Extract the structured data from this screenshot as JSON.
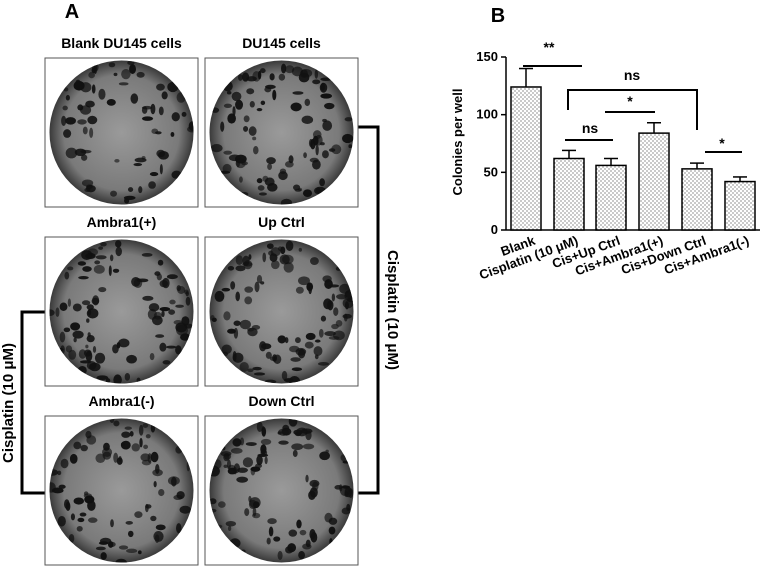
{
  "panel_a": {
    "label": "A",
    "wells": [
      "Blank DU145 cells",
      "DU145 cells",
      "Ambra1(+)",
      "Up Ctrl",
      "Ambra1(-)",
      "Down Ctrl"
    ],
    "bracket_left": "Cisplatin (10 μM)",
    "bracket_right": "Cisplatin (10 μM)"
  },
  "chart_data": {
    "type": "bar",
    "panel_label": "B",
    "y_label": "Colonies per well",
    "categories": [
      "Blank",
      "Cisplatin (10 μM)",
      "Cis+Up Ctrl",
      "Cis+Ambra1(+)",
      "Cis+Down Ctrl",
      "Cis+Ambra1(-)"
    ],
    "values": [
      124,
      62,
      56,
      84,
      53,
      42
    ],
    "errors": [
      16,
      7,
      6,
      9,
      5,
      4
    ],
    "ylim": [
      0,
      150
    ],
    "yticks": [
      0,
      50,
      100,
      150
    ],
    "annotations": [
      "**",
      "ns",
      "*",
      "ns",
      "*"
    ]
  }
}
